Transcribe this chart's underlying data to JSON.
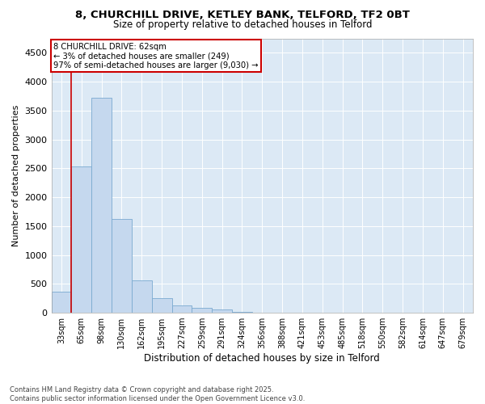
{
  "title_line1": "8, CHURCHILL DRIVE, KETLEY BANK, TELFORD, TF2 0BT",
  "title_line2": "Size of property relative to detached houses in Telford",
  "xlabel": "Distribution of detached houses by size in Telford",
  "ylabel": "Number of detached properties",
  "categories": [
    "33sqm",
    "65sqm",
    "98sqm",
    "130sqm",
    "162sqm",
    "195sqm",
    "227sqm",
    "259sqm",
    "291sqm",
    "324sqm",
    "356sqm",
    "388sqm",
    "421sqm",
    "453sqm",
    "485sqm",
    "518sqm",
    "550sqm",
    "582sqm",
    "614sqm",
    "647sqm",
    "679sqm"
  ],
  "values": [
    370,
    2530,
    3720,
    1620,
    560,
    250,
    130,
    80,
    55,
    10,
    5,
    0,
    0,
    0,
    0,
    0,
    0,
    0,
    0,
    0,
    0
  ],
  "bar_color": "#c5d8ee",
  "bar_edge_color": "#7aaad0",
  "bar_linewidth": 0.6,
  "vline_color": "#cc0000",
  "annotation_title": "8 CHURCHILL DRIVE: 62sqm",
  "annotation_line2": "← 3% of detached houses are smaller (249)",
  "annotation_line3": "97% of semi-detached houses are larger (9,030) →",
  "annotation_box_color": "#cc0000",
  "ylim": [
    0,
    4750
  ],
  "yticks": [
    0,
    500,
    1000,
    1500,
    2000,
    2500,
    3000,
    3500,
    4000,
    4500
  ],
  "plot_bg_color": "#dce9f5",
  "footer_line1": "Contains HM Land Registry data © Crown copyright and database right 2025.",
  "footer_line2": "Contains public sector information licensed under the Open Government Licence v3.0."
}
